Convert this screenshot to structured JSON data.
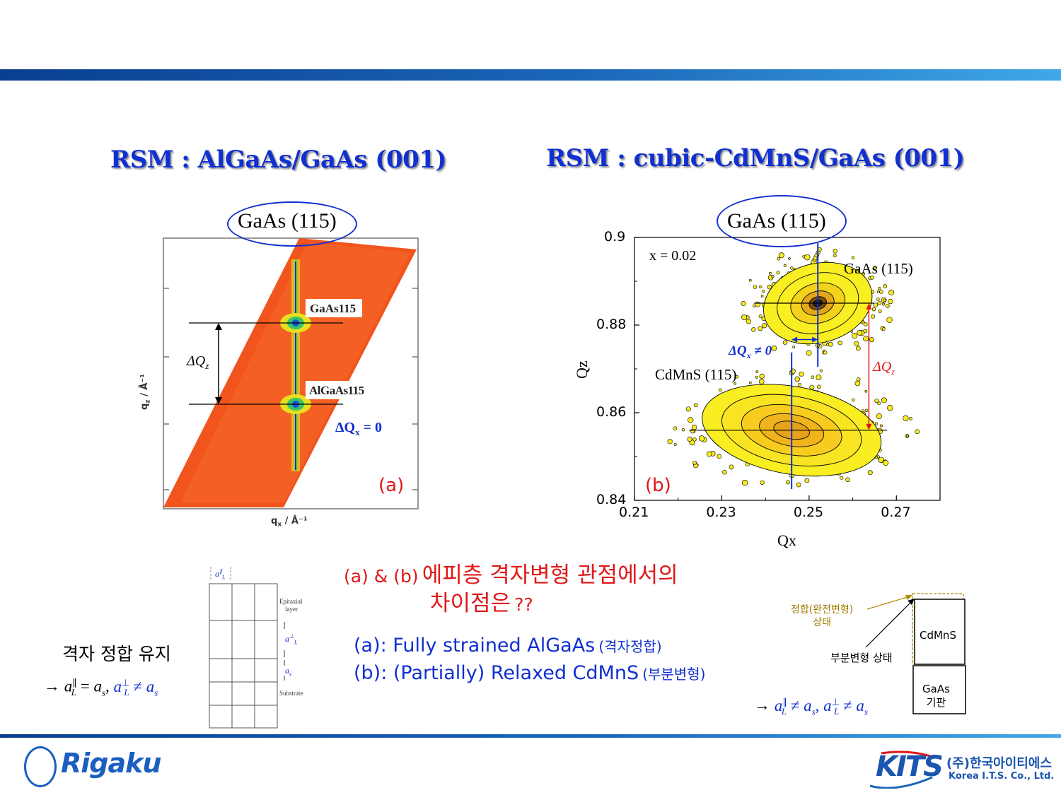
{
  "header": {
    "bar_color_start": "#0a3f8f",
    "bar_color_end": "#3fa8e6"
  },
  "left": {
    "title": "RSM : AlGaAs/GaAs (001)",
    "circled_label": "GaAs (115)",
    "peak_top": "GaAs115",
    "peak_bottom": "AlGaAs115",
    "delta_qz": "ΔQ",
    "delta_qz_sub": "z",
    "delta_qx": "ΔQ",
    "delta_qx_sub": "x",
    "delta_qx_rel": "= 0",
    "panel": "(a)",
    "yaxis_label": "q",
    "yaxis_sub": "z",
    "yaxis_unit": "/ Å⁻¹",
    "xaxis_label": "q",
    "xaxis_sub": "x",
    "xaxis_unit": "/ Å⁻¹"
  },
  "right": {
    "title": "RSM : cubic-CdMnS/GaAs (001)",
    "circled_label": "GaAs (115)",
    "composition": "x = 0.02",
    "peak_top": "GaAs (115)",
    "peak_bottom": "CdMnS (115)",
    "delta_qx": "ΔQ",
    "delta_qx_sub": "x",
    "delta_qx_rel": "≠ 0",
    "delta_qz": "ΔQ",
    "delta_qz_sub": "z",
    "panel": "(b)"
  },
  "chart_data": {
    "type": "heatmap",
    "title": "",
    "xlabel": "Qx",
    "ylabel": "Qz",
    "xlim": [
      0.21,
      0.28
    ],
    "ylim": [
      0.84,
      0.9
    ],
    "xticks": [
      "0.21",
      "0.23",
      "0.25",
      "0.27"
    ],
    "yticks": [
      "0.84",
      "0.86",
      "0.88",
      "0.9"
    ],
    "peaks": [
      {
        "label": "GaAs (115)",
        "qx": 0.252,
        "qz": 0.885
      },
      {
        "label": "CdMnS (115)",
        "qx": 0.246,
        "qz": 0.856
      }
    ]
  },
  "question": {
    "prefix": "(a) & (b)",
    "line1": "에피층 격자변형 관점에서의",
    "line2": "차이점은",
    "suffix": "??"
  },
  "answers": {
    "a_main": "(a): Fully strained AlGaAs",
    "a_paren": "(격자정합)",
    "b_main": "(b): (Partially) Relaxed CdMnS",
    "b_paren": "(부분변형)"
  },
  "bottom_left": {
    "caption": "격자 정합 유지",
    "arrow": "→",
    "sym_a": "a",
    "par": "∥",
    "sub_L": "L",
    "eq": "=",
    "sym_as": "a",
    "sub_s": "s",
    "comma": ",",
    "perp": "⊥",
    "neq": "≠",
    "layer_label_1": "Epitaxial",
    "layer_label_2": "layer",
    "substrate_label": "Substrate",
    "aL_par": "a",
    "aL_perp": "a",
    "as_label": "a"
  },
  "bottom_right": {
    "coherent_1": "정합(완전변형)",
    "coherent_2": "상태",
    "partial": "부분변형 상태",
    "film": "CdMnS",
    "substrate_1": "GaAs",
    "substrate_2": "기판",
    "arrow": "→",
    "sym_a": "a",
    "par": "∥",
    "perp": "⊥",
    "sub_L": "L",
    "neq": "≠",
    "sym_as": "a",
    "sub_s": "s",
    "comma": ","
  },
  "footer": {
    "rigaku_logo": "Rigaku",
    "kits_logo": "KITS",
    "kits_korean": "(주)한국아이티에스",
    "kits_english": "Korea I.T.S. Co., Ltd."
  },
  "colors": {
    "title_blue": "#1030d0",
    "red": "#e01818",
    "map_orange": "#f2541e"
  }
}
